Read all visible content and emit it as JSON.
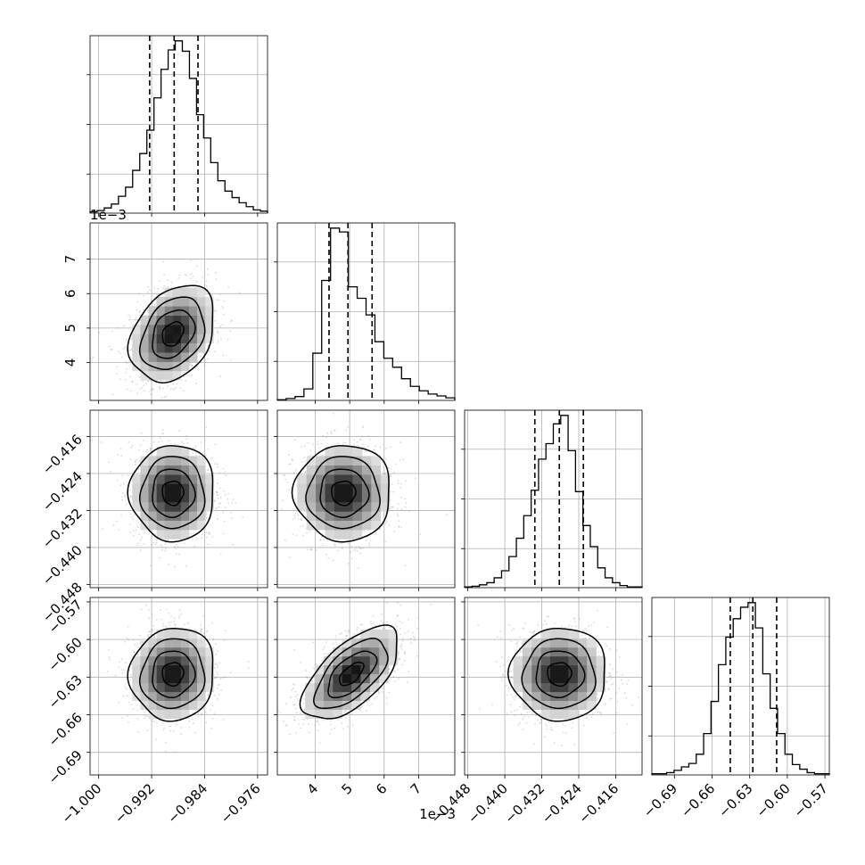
{
  "chart_data": {
    "type": "corner",
    "title": "",
    "parameters": [
      {
        "name": "p0",
        "label": "",
        "range": [
          -1.0013,
          -0.9745
        ],
        "ticks": [
          -1.0,
          -0.992,
          -0.984,
          -0.976
        ],
        "tick_labels": [
          "−1.000",
          "−0.992",
          "−0.984",
          "−0.976"
        ],
        "quantiles": [
          -0.9923,
          -0.9886,
          -0.985
        ],
        "hist_counts": [
          2,
          4,
          8,
          14,
          26,
          40,
          66,
          92,
          128,
          178,
          222,
          252,
          266,
          250,
          208,
          152,
          116,
          78,
          50,
          34,
          24,
          16,
          10,
          5,
          3
        ]
      },
      {
        "name": "p1",
        "label": "",
        "offset_text": "1e−3",
        "range": [
          2.9,
          8.05
        ],
        "ticks": [
          4,
          5,
          6,
          7
        ],
        "tick_labels": [
          "4",
          "5",
          "6",
          "7"
        ],
        "quantiles": [
          4.4,
          4.95,
          5.65
        ],
        "hist_counts": [
          1,
          3,
          6,
          18,
          74,
          188,
          270,
          264,
          178,
          160,
          134,
          92,
          66,
          52,
          34,
          22,
          15,
          10,
          7,
          4
        ]
      },
      {
        "name": "p2",
        "label": "",
        "range": [
          -0.4487,
          -0.4103
        ],
        "ticks": [
          -0.448,
          -0.44,
          -0.432,
          -0.424,
          -0.416
        ],
        "tick_labels": [
          "−0.448",
          "−0.440",
          "−0.432",
          "−0.424",
          "−0.416"
        ],
        "quantiles": [
          -0.4335,
          -0.4282,
          -0.423
        ],
        "hist_counts": [
          1,
          2,
          4,
          7,
          14,
          24,
          44,
          70,
          102,
          138,
          182,
          204,
          232,
          244,
          194,
          136,
          88,
          58,
          28,
          14,
          7,
          3,
          1,
          1
        ]
      },
      {
        "name": "p3",
        "label": "",
        "range": [
          -0.708,
          -0.5665
        ],
        "ticks": [
          -0.69,
          -0.66,
          -0.63,
          -0.6,
          -0.57
        ],
        "tick_labels": [
          "−0.69",
          "−0.66",
          "−0.63",
          "−0.60",
          "−0.57"
        ],
        "quantiles": [
          -0.6455,
          -0.6275,
          -0.6085
        ],
        "hist_counts": [
          1,
          1,
          2,
          4,
          7,
          10,
          18,
          36,
          64,
          96,
          120,
          136,
          146,
          150,
          128,
          88,
          58,
          36,
          18,
          9,
          5,
          2,
          1,
          1
        ]
      }
    ],
    "pairs": [
      {
        "x": "p0",
        "y": "p1",
        "mean": [
          -0.9888,
          4.83
        ],
        "std": [
          0.0032,
          0.7
        ],
        "rho": 0.3
      },
      {
        "x": "p0",
        "y": "p2",
        "mean": [
          -0.9888,
          -0.4282
        ],
        "std": [
          0.0032,
          0.0052
        ],
        "rho": 0.0
      },
      {
        "x": "p1",
        "y": "p2",
        "mean": [
          4.82,
          -0.4282
        ],
        "std": [
          0.7,
          0.0052
        ],
        "rho": 0.0
      },
      {
        "x": "p0",
        "y": "p3",
        "mean": [
          -0.9888,
          -0.6275
        ],
        "std": [
          0.0032,
          0.0185
        ],
        "rho": 0.05
      },
      {
        "x": "p1",
        "y": "p3",
        "mean": [
          5.05,
          -0.6275
        ],
        "std": [
          0.7,
          0.0185
        ],
        "rho": 0.62
      },
      {
        "x": "p2",
        "y": "p3",
        "mean": [
          -0.4282,
          -0.6275
        ],
        "std": [
          0.0052,
          0.0185
        ],
        "rho": 0.0
      }
    ],
    "contour_levels_sigma": [
      0.5,
      1.0,
      1.5,
      2.0
    ],
    "grid": true,
    "colors": {
      "line": "#000000",
      "grid": "#b0b0b0",
      "points": "#7a7a7a",
      "background": "#ffffff"
    }
  }
}
